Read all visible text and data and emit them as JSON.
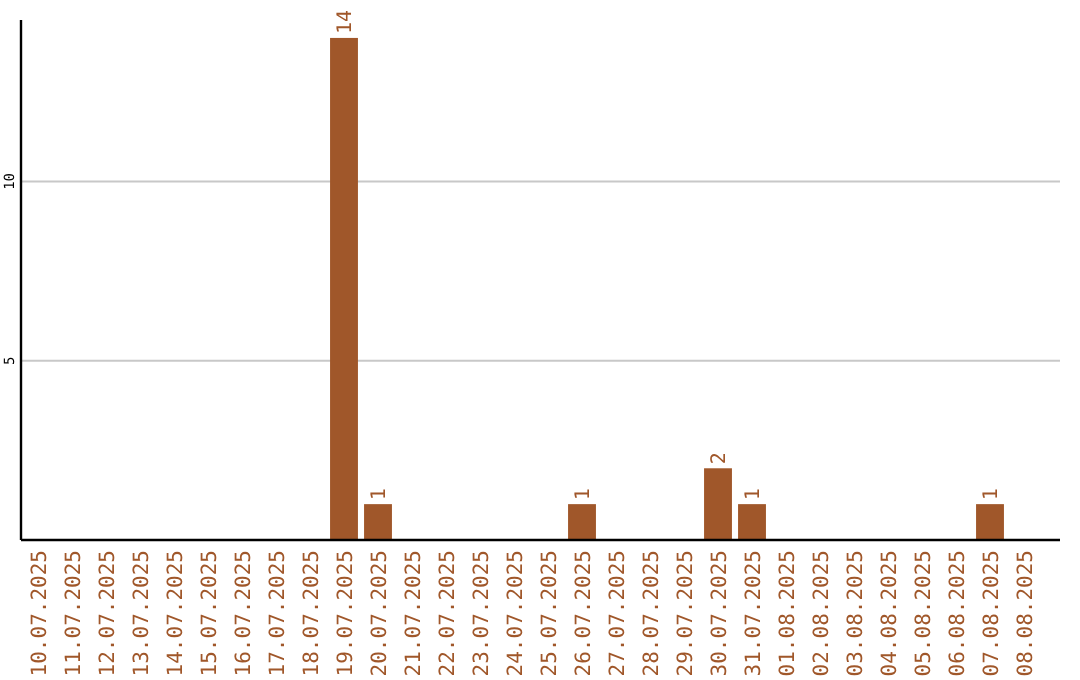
{
  "chart_data": {
    "type": "bar",
    "categories": [
      "10.07.2025",
      "11.07.2025",
      "12.07.2025",
      "13.07.2025",
      "14.07.2025",
      "15.07.2025",
      "16.07.2025",
      "17.07.2025",
      "18.07.2025",
      "19.07.2025",
      "20.07.2025",
      "21.07.2025",
      "22.07.2025",
      "23.07.2025",
      "24.07.2025",
      "25.07.2025",
      "26.07.2025",
      "27.07.2025",
      "28.07.2025",
      "29.07.2025",
      "30.07.2025",
      "31.07.2025",
      "01.08.2025",
      "02.08.2025",
      "03.08.2025",
      "04.08.2025",
      "05.08.2025",
      "06.08.2025",
      "07.08.2025",
      "08.08.2025"
    ],
    "values": [
      0,
      0,
      0,
      0,
      0,
      0,
      0,
      0,
      0,
      14,
      1,
      0,
      0,
      0,
      0,
      0,
      1,
      0,
      0,
      0,
      2,
      1,
      0,
      0,
      0,
      0,
      0,
      0,
      1,
      0
    ],
    "value_labels": [
      null,
      null,
      null,
      null,
      null,
      null,
      null,
      null,
      null,
      "14",
      "1",
      null,
      null,
      null,
      null,
      null,
      "1",
      null,
      null,
      null,
      "2",
      "1",
      null,
      null,
      null,
      null,
      null,
      null,
      "1",
      null
    ],
    "color": "#a0572a",
    "ylim": [
      0,
      14.5
    ],
    "yticks": [
      5,
      10
    ],
    "grid": "y"
  }
}
